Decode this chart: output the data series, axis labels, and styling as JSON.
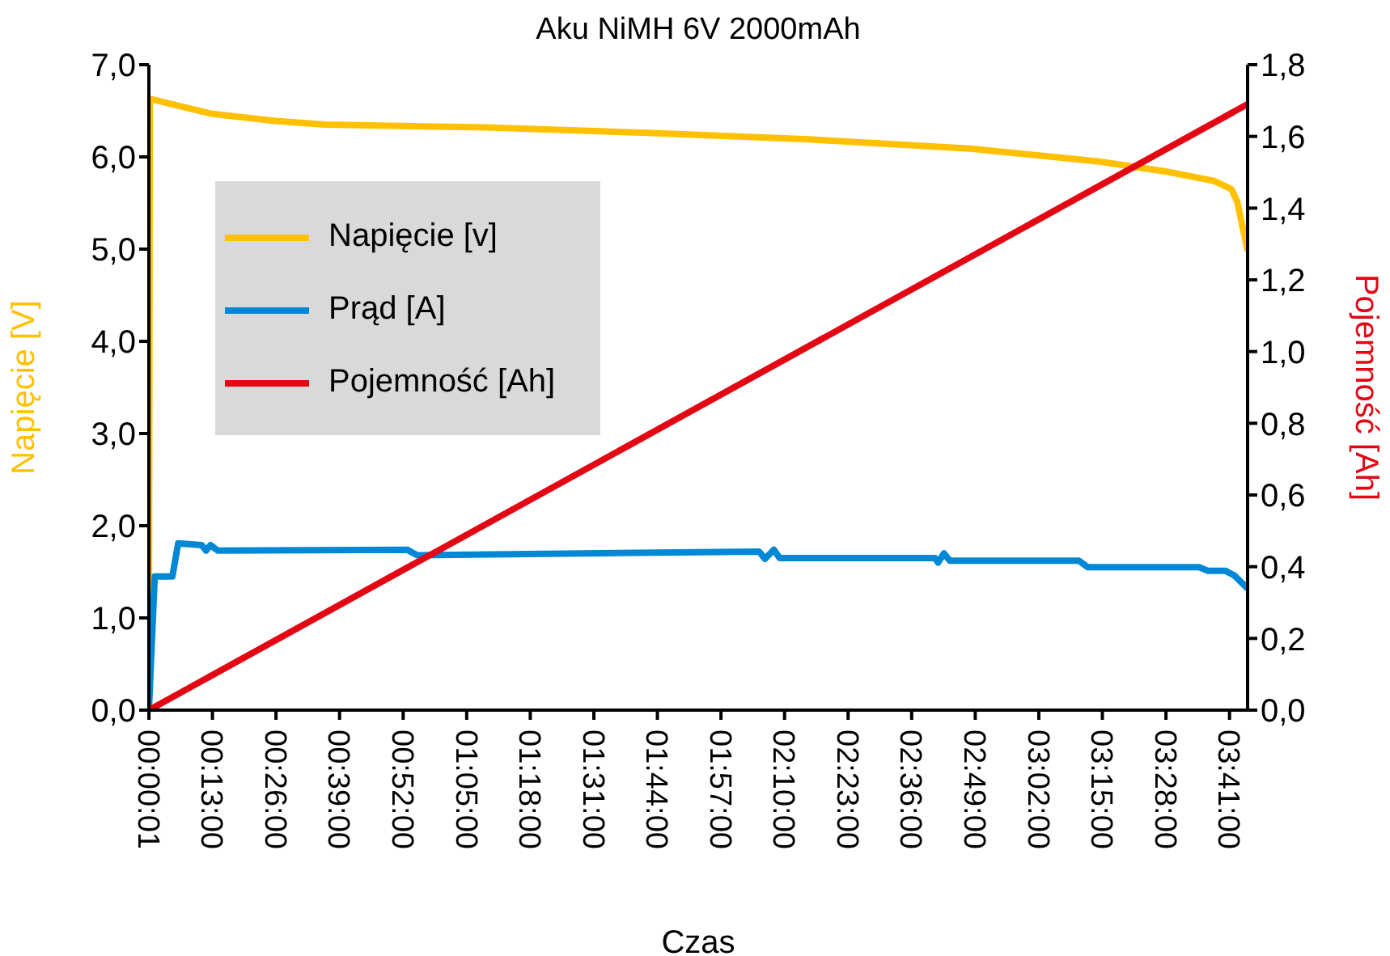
{
  "chart_data": {
    "type": "line",
    "title": "Aku NiMH 6V 2000mAh",
    "xlabel": "Czas",
    "ylabel": "Napięcie [V]",
    "y2label": "Pojemność [Ah]",
    "xlim": [
      0,
      3.745
    ],
    "xticks": [
      {
        "value": 0.0003,
        "label": "00:00:01"
      },
      {
        "value": 0.2167,
        "label": "00:13:00"
      },
      {
        "value": 0.4333,
        "label": "00:26:00"
      },
      {
        "value": 0.65,
        "label": "00:39:00"
      },
      {
        "value": 0.8667,
        "label": "00:52:00"
      },
      {
        "value": 1.0833,
        "label": "01:05:00"
      },
      {
        "value": 1.3,
        "label": "01:18:00"
      },
      {
        "value": 1.5167,
        "label": "01:31:00"
      },
      {
        "value": 1.7333,
        "label": "01:44:00"
      },
      {
        "value": 1.95,
        "label": "01:57:00"
      },
      {
        "value": 2.1667,
        "label": "02:10:00"
      },
      {
        "value": 2.3833,
        "label": "02:23:00"
      },
      {
        "value": 2.6,
        "label": "02:36:00"
      },
      {
        "value": 2.8167,
        "label": "02:49:00"
      },
      {
        "value": 3.0333,
        "label": "03:02:00"
      },
      {
        "value": 3.25,
        "label": "03:15:00"
      },
      {
        "value": 3.4667,
        "label": "03:28:00"
      },
      {
        "value": 3.6833,
        "label": "03:41:00"
      }
    ],
    "ylim": [
      0,
      7
    ],
    "yticks": [
      {
        "value": 0,
        "label": "0,0"
      },
      {
        "value": 1,
        "label": "1,0"
      },
      {
        "value": 2,
        "label": "2,0"
      },
      {
        "value": 3,
        "label": "3,0"
      },
      {
        "value": 4,
        "label": "4,0"
      },
      {
        "value": 5,
        "label": "5,0"
      },
      {
        "value": 6,
        "label": "6,0"
      },
      {
        "value": 7,
        "label": "7,0"
      }
    ],
    "y2lim": [
      0,
      1.8
    ],
    "y2ticks": [
      {
        "value": 0,
        "label": "0,0"
      },
      {
        "value": 0.2,
        "label": "0,2"
      },
      {
        "value": 0.4,
        "label": "0,4"
      },
      {
        "value": 0.6,
        "label": "0,6"
      },
      {
        "value": 0.8,
        "label": "0,8"
      },
      {
        "value": 1,
        "label": "1,0"
      },
      {
        "value": 1.2,
        "label": "1,2"
      },
      {
        "value": 1.4,
        "label": "1,4"
      },
      {
        "value": 1.6,
        "label": "1,6"
      },
      {
        "value": 1.8,
        "label": "1,8"
      }
    ],
    "legend": "top left",
    "grid": false,
    "marker": "none",
    "line_style": "solid",
    "series": [
      {
        "name": "Napięcie [v]",
        "color": "#ffc000",
        "x": [
          0,
          0.003,
          0.21,
          0.43,
          0.6,
          1.15,
          1.7,
          2.25,
          2.8,
          3.24,
          3.47,
          3.63,
          3.69,
          3.71,
          3.745
        ],
        "values": [
          0,
          6.63,
          6.47,
          6.39,
          6.35,
          6.32,
          6.26,
          6.19,
          6.09,
          5.95,
          5.84,
          5.74,
          5.65,
          5.51,
          4.98
        ]
      },
      {
        "name": "Prąd [A]",
        "color": "#0088d6",
        "x": [
          0,
          0.02,
          0.08,
          0.1,
          0.18,
          0.195,
          0.21,
          0.235,
          0.88,
          0.915,
          2.08,
          2.1,
          2.13,
          2.15,
          2.68,
          2.69,
          2.71,
          2.73,
          3.17,
          3.2,
          3.58,
          3.61,
          3.67,
          3.7,
          3.745
        ],
        "values": [
          0,
          1.45,
          1.45,
          1.81,
          1.79,
          1.73,
          1.79,
          1.73,
          1.74,
          1.68,
          1.72,
          1.64,
          1.74,
          1.65,
          1.65,
          1.6,
          1.7,
          1.62,
          1.62,
          1.55,
          1.55,
          1.51,
          1.51,
          1.46,
          1.32
        ]
      },
      {
        "name": "Pojemność [Ah]",
        "color": "#e30613",
        "axis": "y2",
        "x": [
          0,
          3.745
        ],
        "values": [
          0,
          1.69
        ]
      }
    ]
  }
}
